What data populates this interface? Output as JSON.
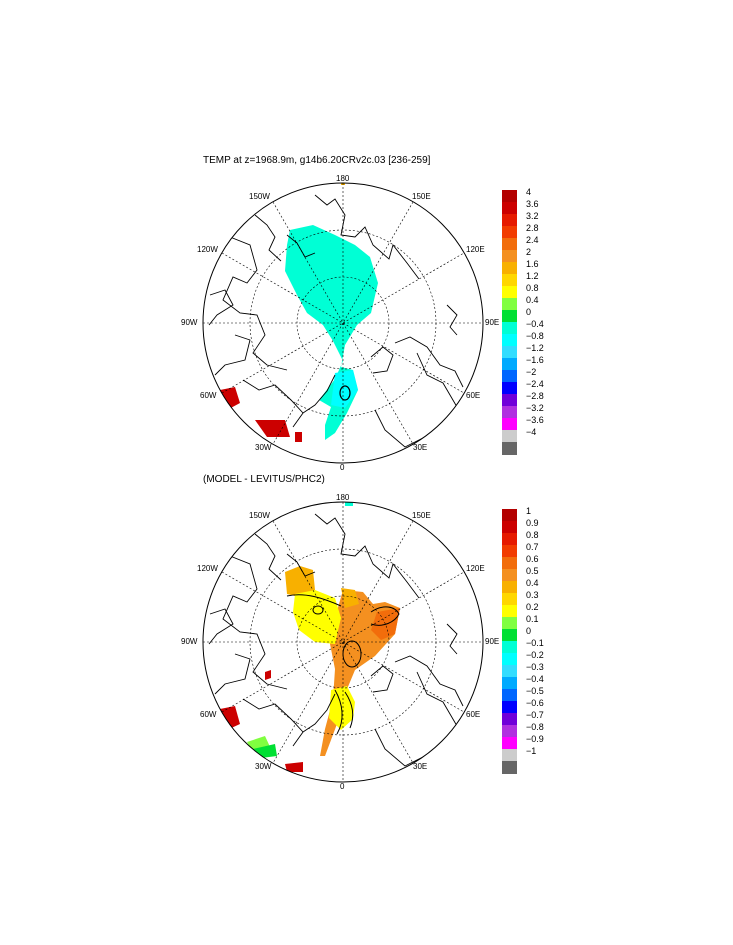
{
  "panels": [
    {
      "title": "TEMP at z=1968.9m, g14b6.20CRv2c.03 [236-259]",
      "lon_labels": [
        "180",
        "150E",
        "120E",
        "90E",
        "60E",
        "30E",
        "0",
        "30W",
        "60W",
        "90W",
        "120W",
        "150W"
      ],
      "colorbar": {
        "ticks": [
          "4",
          "3.6",
          "3.2",
          "2.8",
          "2.4",
          "2",
          "1.6",
          "1.2",
          "0.8",
          "0.4",
          "0",
          "−0.4",
          "−0.8",
          "−1.2",
          "−1.6",
          "−2",
          "−2.4",
          "−2.8",
          "−3.2",
          "−3.6",
          "−4"
        ],
        "colors": [
          "#b30000",
          "#cc0000",
          "#e61a00",
          "#f23c00",
          "#f26d0b",
          "#f49020",
          "#f8b000",
          "#ffd700",
          "#ffff00",
          "#80ff40",
          "#00e033",
          "#00ffd5",
          "#00ffff",
          "#33ddff",
          "#00aaff",
          "#0066ff",
          "#0000ff",
          "#7000d9",
          "#b030e0",
          "#ff00ff",
          "#cccccc",
          "#666666"
        ]
      }
    },
    {
      "title": "(MODEL - LEVITUS/PHC2)",
      "lon_labels": [
        "180",
        "150E",
        "120E",
        "90E",
        "60E",
        "30E",
        "0",
        "30W",
        "60W",
        "90W",
        "120W",
        "150W"
      ],
      "colorbar": {
        "ticks": [
          "1",
          "0.9",
          "0.8",
          "0.7",
          "0.6",
          "0.5",
          "0.4",
          "0.3",
          "0.2",
          "0.1",
          "0",
          "−0.1",
          "−0.2",
          "−0.3",
          "−0.4",
          "−0.5",
          "−0.6",
          "−0.7",
          "−0.8",
          "−0.9",
          "−1"
        ],
        "colors": [
          "#b30000",
          "#cc0000",
          "#e61a00",
          "#f23c00",
          "#f26d0b",
          "#f49020",
          "#f8b000",
          "#ffd700",
          "#ffff00",
          "#80ff40",
          "#00e033",
          "#00ffd5",
          "#00ffff",
          "#33ddff",
          "#00aaff",
          "#0066ff",
          "#0000ff",
          "#7000d9",
          "#b030e0",
          "#ff00ff",
          "#cccccc",
          "#666666"
        ]
      }
    }
  ]
}
